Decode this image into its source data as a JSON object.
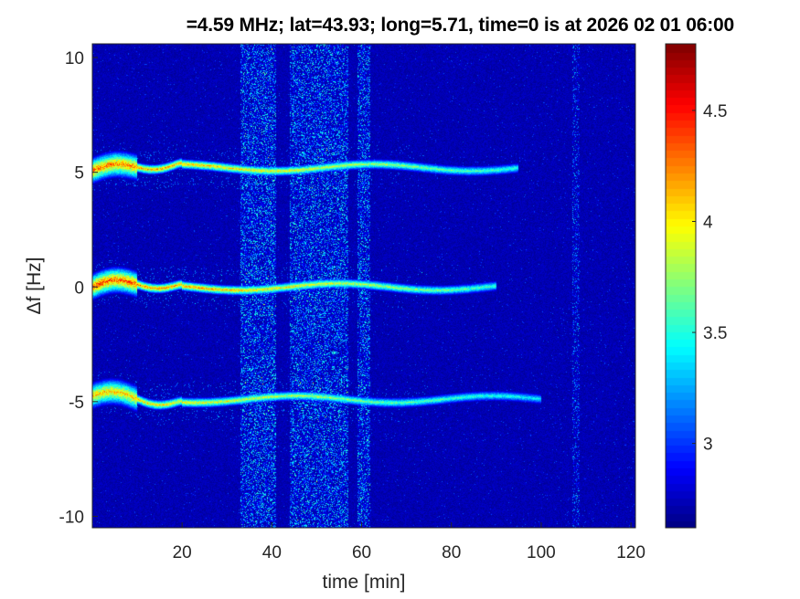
{
  "chart_data": {
    "type": "heatmap",
    "title": "=4.59 MHz;  lat=43.93; long=5.71, time=0 is at 2026 02 01 06:00",
    "xlabel": "time [min]",
    "ylabel": "Δf [Hz]",
    "xlim": [
      0,
      121
    ],
    "ylim": [
      -10.5,
      10.6
    ],
    "xticks": [
      20,
      40,
      60,
      80,
      100,
      120
    ],
    "yticks": [
      -10,
      -5,
      0,
      5,
      10
    ],
    "xtick_labels": [
      "20",
      "40",
      "60",
      "80",
      "100",
      "120"
    ],
    "ytick_labels": [
      "-10",
      "-5",
      "0",
      "5",
      "10"
    ],
    "colormap": "jet",
    "clim": [
      2.62,
      4.8
    ],
    "colorbar_ticks": [
      3,
      3.5,
      4,
      4.5
    ],
    "colorbar_tick_labels": [
      "3",
      "3.5",
      "4",
      "4.5"
    ],
    "colorbar_position": "right",
    "traces": [
      {
        "freq_hz": 5.2,
        "t_start": 0,
        "t_end": 95,
        "peak": 4.6
      },
      {
        "freq_hz": 0.0,
        "t_start": 0,
        "t_end": 90,
        "peak": 4.7
      },
      {
        "freq_hz": -4.9,
        "t_start": 0,
        "t_end": 100,
        "peak": 4.4
      }
    ],
    "noise_bands_min": [
      [
        33,
        41
      ],
      [
        44,
        57
      ],
      [
        59,
        62
      ],
      [
        107,
        108.5
      ]
    ]
  }
}
